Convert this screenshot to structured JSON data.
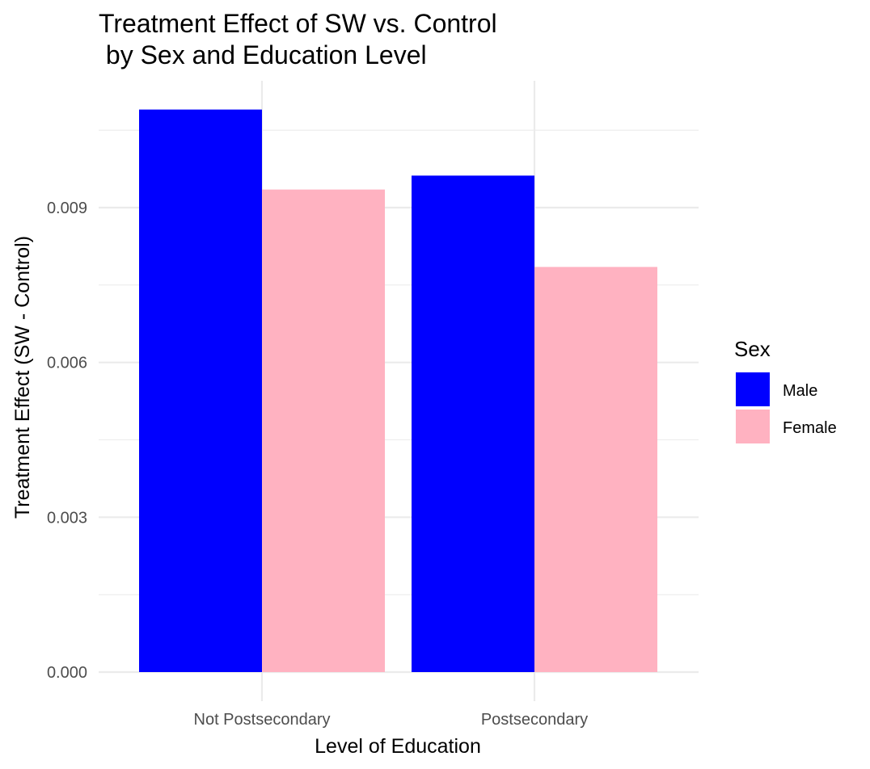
{
  "chart_data": {
    "type": "bar",
    "title_lines": [
      "Treatment Effect of SW vs. Control",
      " by Sex and Education Level"
    ],
    "xlabel": "Level of Education",
    "ylabel": "Treatment Effect (SW - Control)",
    "categories": [
      "Not Postsecondary",
      "Postsecondary"
    ],
    "series": [
      {
        "name": "Male",
        "color": "#0000ff",
        "values": [
          0.0109,
          0.00962
        ]
      },
      {
        "name": "Female",
        "color": "#ffb2c1",
        "values": [
          0.00935,
          0.00785
        ]
      }
    ],
    "ylim": [
      0,
      0.0105
    ],
    "yticks": [
      "0.000",
      "0.003",
      "0.006",
      "0.009"
    ],
    "ytick_values": [
      0,
      0.003,
      0.006,
      0.009
    ],
    "grid": true,
    "legend": {
      "title": "Sex",
      "placement": "right"
    }
  }
}
